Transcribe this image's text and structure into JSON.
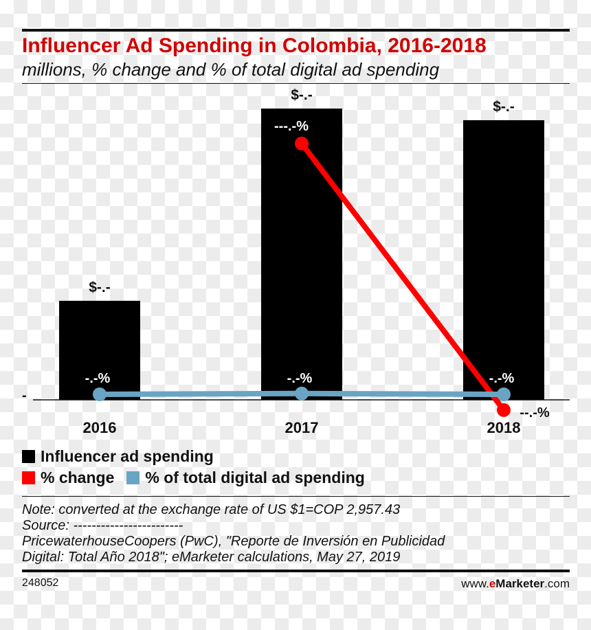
{
  "header": {
    "title": "Influencer Ad Spending in Colombia, 2016-2018",
    "subtitle": "millions, % change and % of total digital ad spending"
  },
  "colors": {
    "bar": "#000000",
    "change": "#ff0000",
    "share": "#6aa4c4",
    "title": "#d10000"
  },
  "chart_data": {
    "type": "bar",
    "title": "Influencer Ad Spending in Colombia, 2016-2018",
    "subtitle": "millions, % change and % of total digital ad spending",
    "categories": [
      "2016",
      "2017",
      "2018"
    ],
    "y_tick_label": "-",
    "series": [
      {
        "name": "Influencer ad spending",
        "type": "bar",
        "values": [
          34,
          100,
          96
        ],
        "value_labels": [
          "$-.-",
          "$-.-",
          "$-.-"
        ]
      },
      {
        "name": "% change",
        "type": "line",
        "points": [
          {
            "category": "2017",
            "value": 88,
            "label": "---.-%"
          },
          {
            "category": "2018",
            "value": -3.5,
            "label": "--.-%"
          }
        ]
      },
      {
        "name": "% of total digital ad spending",
        "type": "line",
        "values": [
          1,
          1.2,
          1
        ],
        "value_labels": [
          "-.-%",
          "-.-%",
          "-.-%"
        ]
      }
    ],
    "ylim": [
      0,
      100
    ],
    "legend": "bottom"
  },
  "legend": {
    "bar": "Influencer ad spending",
    "change": "% change",
    "share": "% of total digital ad spending"
  },
  "notes": {
    "line1": "Note: converted at the exchange rate of US $1=COP 2,957.43",
    "line2": "Source: ------------------------",
    "line3": "PricewaterhouseCoopers (PwC), \"Reporte de Inversión en Publicidad",
    "line4": "Digital: Total Año 2018\"; eMarketer calculations, May 27, 2019"
  },
  "footer": {
    "id": "248052",
    "brand_prefix": "www.",
    "brand_e": "e",
    "brand_name": "Marketer",
    "brand_suffix": ".com"
  }
}
